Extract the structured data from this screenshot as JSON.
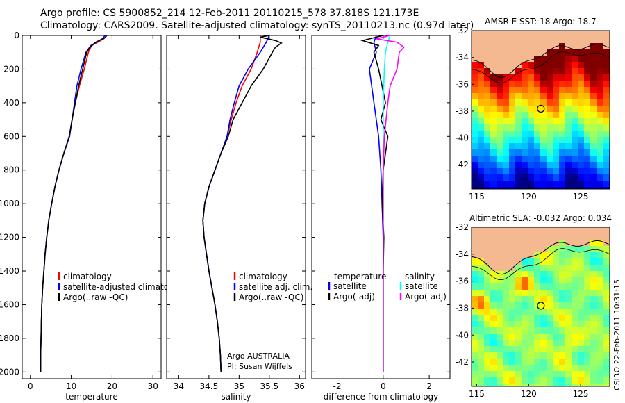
{
  "header": {
    "line1": "Argo profile: CS 5900852_214 12-Feb-2011 20110215_578 37.818S 121.173E",
    "line2": "Climatology: CARS2009. Satellite-adjusted climatology: synTS_20110213.nc (0.97d later)"
  },
  "stamp": "CSIRO 22-Feb-2011 10:31:15",
  "colors": {
    "climatology": "#ff0000",
    "satellite": "#0000ff",
    "argo": "#000000",
    "sat_salinity": "#00ffff",
    "argo_salinity": "#ff00ff",
    "land": "#f4b990"
  },
  "chart_data": [
    {
      "id": "temperature",
      "type": "line",
      "xlabel": "temperature",
      "ylabel": "",
      "xlim": [
        -2,
        32
      ],
      "ylim": [
        2040,
        0
      ],
      "xticks": [
        0,
        10,
        20,
        30
      ],
      "yticks": [
        0,
        200,
        400,
        600,
        800,
        1000,
        1200,
        1400,
        1600,
        1800,
        2000
      ],
      "legend": {
        "position": "lower-right",
        "entries": [
          "climatology",
          "satellite-adjusted climatology",
          "Argo(..raw -QC)"
        ]
      },
      "series": [
        {
          "name": "climatology",
          "color": "#ff0000",
          "points": [
            [
              18.7,
              0
            ],
            [
              18.0,
              20
            ],
            [
              15.0,
              60
            ],
            [
              14.2,
              100
            ],
            [
              13.2,
              200
            ],
            [
              12.0,
              300
            ],
            [
              11.0,
              400
            ],
            [
              10.2,
              500
            ],
            [
              9.6,
              600
            ],
            [
              8.2,
              700
            ],
            [
              7.0,
              800
            ],
            [
              6.0,
              900
            ],
            [
              5.2,
              1000
            ],
            [
              4.5,
              1100
            ],
            [
              4.0,
              1200
            ],
            [
              3.6,
              1300
            ],
            [
              3.3,
              1400
            ],
            [
              3.0,
              1500
            ],
            [
              2.8,
              1600
            ],
            [
              2.7,
              1700
            ],
            [
              2.6,
              1800
            ],
            [
              2.5,
              1900
            ],
            [
              2.5,
              2000
            ]
          ]
        },
        {
          "name": "satellite-adjusted climatology",
          "color": "#0000ff",
          "points": [
            [
              18.3,
              0
            ],
            [
              17.6,
              20
            ],
            [
              14.8,
              60
            ],
            [
              13.6,
              100
            ],
            [
              12.4,
              200
            ],
            [
              11.4,
              300
            ],
            [
              10.8,
              400
            ],
            [
              10.2,
              500
            ],
            [
              9.6,
              600
            ],
            [
              8.2,
              700
            ],
            [
              7.0,
              800
            ],
            [
              6.0,
              900
            ],
            [
              5.2,
              1000
            ],
            [
              4.5,
              1100
            ],
            [
              4.0,
              1200
            ],
            [
              3.6,
              1300
            ],
            [
              3.3,
              1400
            ],
            [
              3.0,
              1500
            ],
            [
              2.8,
              1600
            ],
            [
              2.7,
              1700
            ],
            [
              2.6,
              1800
            ],
            [
              2.5,
              1900
            ],
            [
              2.5,
              2000
            ]
          ]
        },
        {
          "name": "Argo(..raw -QC)",
          "color": "#000000",
          "points": [
            [
              18.7,
              0
            ],
            [
              18.2,
              15
            ],
            [
              16.0,
              40
            ],
            [
              14.6,
              70
            ],
            [
              13.8,
              100
            ],
            [
              12.8,
              200
            ],
            [
              11.8,
              300
            ],
            [
              11.0,
              400
            ],
            [
              10.2,
              500
            ],
            [
              9.5,
              600
            ],
            [
              8.2,
              700
            ],
            [
              7.0,
              800
            ],
            [
              6.0,
              900
            ],
            [
              5.2,
              1000
            ],
            [
              4.5,
              1100
            ],
            [
              4.0,
              1200
            ],
            [
              3.6,
              1300
            ],
            [
              3.3,
              1400
            ],
            [
              3.0,
              1500
            ],
            [
              2.8,
              1600
            ],
            [
              2.7,
              1700
            ],
            [
              2.6,
              1800
            ],
            [
              2.5,
              1900
            ],
            [
              2.5,
              2000
            ]
          ]
        }
      ]
    },
    {
      "id": "salinity",
      "type": "line",
      "xlabel": "salinity",
      "ylabel": "",
      "xlim": [
        33.8,
        36.1
      ],
      "ylim": [
        2040,
        0
      ],
      "xticks": [
        34,
        34.5,
        35,
        35.5,
        36
      ],
      "yticks": [
        0,
        200,
        400,
        600,
        800,
        1000,
        1200,
        1400,
        1600,
        1800,
        2000
      ],
      "legend": {
        "position": "lower-right",
        "entries": [
          "climatology",
          "satellite adj. clim.",
          "Argo(..raw -QC)"
        ]
      },
      "annotation": [
        "Argo AUSTRALIA",
        "PI: Susan Wijffels"
      ],
      "series": [
        {
          "name": "climatology",
          "color": "#ff0000",
          "points": [
            [
              35.35,
              0
            ],
            [
              35.35,
              40
            ],
            [
              35.3,
              100
            ],
            [
              35.2,
              200
            ],
            [
              35.05,
              300
            ],
            [
              34.95,
              400
            ],
            [
              34.87,
              500
            ],
            [
              34.8,
              600
            ],
            [
              34.7,
              700
            ],
            [
              34.6,
              800
            ],
            [
              34.5,
              900
            ],
            [
              34.43,
              1000
            ],
            [
              34.4,
              1100
            ],
            [
              34.42,
              1200
            ],
            [
              34.46,
              1300
            ],
            [
              34.5,
              1400
            ],
            [
              34.55,
              1500
            ],
            [
              34.6,
              1600
            ],
            [
              34.64,
              1700
            ],
            [
              34.67,
              1800
            ],
            [
              34.69,
              1900
            ],
            [
              34.7,
              2000
            ]
          ]
        },
        {
          "name": "satellite adj. clim.",
          "color": "#0000ff",
          "points": [
            [
              35.5,
              0
            ],
            [
              35.45,
              40
            ],
            [
              35.35,
              100
            ],
            [
              35.15,
              200
            ],
            [
              35.0,
              300
            ],
            [
              34.92,
              400
            ],
            [
              34.85,
              500
            ],
            [
              34.8,
              600
            ],
            [
              34.7,
              700
            ],
            [
              34.6,
              800
            ],
            [
              34.5,
              900
            ],
            [
              34.43,
              1000
            ],
            [
              34.4,
              1100
            ],
            [
              34.42,
              1200
            ],
            [
              34.46,
              1300
            ],
            [
              34.5,
              1400
            ],
            [
              34.55,
              1500
            ],
            [
              34.6,
              1600
            ],
            [
              34.64,
              1700
            ],
            [
              34.67,
              1800
            ],
            [
              34.69,
              1900
            ],
            [
              34.7,
              2000
            ]
          ]
        },
        {
          "name": "Argo(..raw -QC)",
          "color": "#000000",
          "points": [
            [
              35.5,
              0
            ],
            [
              35.35,
              10
            ],
            [
              35.6,
              30
            ],
            [
              35.7,
              45
            ],
            [
              35.6,
              70
            ],
            [
              35.55,
              100
            ],
            [
              35.4,
              200
            ],
            [
              35.2,
              300
            ],
            [
              35.05,
              400
            ],
            [
              34.9,
              500
            ],
            [
              34.82,
              600
            ],
            [
              34.7,
              700
            ],
            [
              34.6,
              800
            ],
            [
              34.5,
              900
            ],
            [
              34.43,
              1000
            ],
            [
              34.4,
              1100
            ],
            [
              34.42,
              1200
            ],
            [
              34.46,
              1300
            ],
            [
              34.5,
              1400
            ],
            [
              34.55,
              1500
            ],
            [
              34.6,
              1600
            ],
            [
              34.64,
              1700
            ],
            [
              34.67,
              1800
            ],
            [
              34.69,
              1900
            ],
            [
              34.7,
              2000
            ]
          ]
        }
      ]
    },
    {
      "id": "difference",
      "type": "line",
      "xlabel": "difference from climatology",
      "ylabel": "",
      "xlim": [
        -3.1,
        2.9
      ],
      "ylim": [
        2040,
        0
      ],
      "xticks": [
        -2,
        0,
        2
      ],
      "yticks": [
        0,
        200,
        400,
        600,
        800,
        1000,
        1200,
        1400,
        1600,
        1800,
        2000
      ],
      "legend": {
        "position": "lower-right",
        "left_header": "temperature",
        "right_header": "salinity",
        "entries": [
          "satellite",
          "Argo(-adj)",
          "satellite",
          "Argo(-adj)"
        ]
      },
      "series": [
        {
          "name": "temperature satellite",
          "color": "#0000ff",
          "points": [
            [
              -0.3,
              0
            ],
            [
              -0.4,
              40
            ],
            [
              -0.3,
              100
            ],
            [
              -0.6,
              200
            ],
            [
              -0.4,
              400
            ],
            [
              -0.2,
              600
            ],
            [
              -0.1,
              800
            ],
            [
              -0.05,
              1000
            ],
            [
              0,
              1200
            ],
            [
              0,
              1400
            ],
            [
              0,
              2000
            ]
          ]
        },
        {
          "name": "temperature Argo(-adj)",
          "color": "#000000",
          "points": [
            [
              0,
              0
            ],
            [
              -0.9,
              30
            ],
            [
              -0.2,
              60
            ],
            [
              -0.4,
              100
            ],
            [
              -0.2,
              200
            ],
            [
              0.1,
              400
            ],
            [
              -0.1,
              500
            ],
            [
              0.2,
              600
            ],
            [
              0,
              800
            ],
            [
              -0.05,
              1000
            ],
            [
              0.03,
              1200
            ],
            [
              0,
              1400
            ],
            [
              0,
              2000
            ]
          ]
        },
        {
          "name": "salinity satellite",
          "color": "#00ffff",
          "points": [
            [
              0.3,
              0
            ],
            [
              0.2,
              40
            ],
            [
              0.1,
              100
            ],
            [
              0.05,
              200
            ],
            [
              0,
              400
            ],
            [
              0,
              2000
            ]
          ]
        },
        {
          "name": "salinity Argo(-adj)",
          "color": "#ff00ff",
          "points": [
            [
              0.3,
              0
            ],
            [
              -0.3,
              20
            ],
            [
              0.6,
              40
            ],
            [
              0.9,
              70
            ],
            [
              0.7,
              100
            ],
            [
              0.6,
              200
            ],
            [
              0.3,
              300
            ],
            [
              0.2,
              400
            ],
            [
              0.05,
              600
            ],
            [
              0,
              800
            ],
            [
              0,
              2000
            ]
          ]
        }
      ]
    },
    {
      "id": "sst-map",
      "type": "heatmap",
      "title": "AMSR-E SST: 18 Argo: 18.7",
      "xlim": [
        114.5,
        127.8
      ],
      "ylim": [
        -43.8,
        -32
      ],
      "xticks": [
        115,
        120,
        125
      ],
      "yticks": [
        -32,
        -34,
        -36,
        -38,
        -40,
        -42
      ],
      "marker": {
        "lon": 121.173,
        "lat": -37.818
      }
    },
    {
      "id": "sla-map",
      "type": "heatmap",
      "title": "Altimetric SLA: -0.032 Argo: 0.034",
      "xlim": [
        114.5,
        127.8
      ],
      "ylim": [
        -43.8,
        -32
      ],
      "xticks": [
        115,
        120,
        125
      ],
      "yticks": [
        -32,
        -34,
        -36,
        -38,
        -40,
        -42
      ],
      "marker": {
        "lon": 121.173,
        "lat": -37.818
      }
    }
  ]
}
